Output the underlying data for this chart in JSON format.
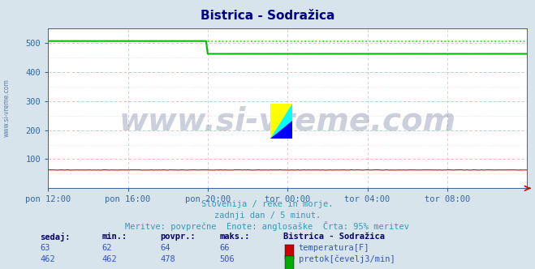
{
  "title_display": "Bistrica - Sodražica",
  "bg_color": "#d8e4ec",
  "plot_bg_color": "#ffffff",
  "grid_h_color": "#ffaaaa",
  "grid_v_color": "#cccccc",
  "tick_color": "#336699",
  "ylim": [
    0,
    550
  ],
  "yticks": [
    100,
    200,
    300,
    400,
    500
  ],
  "x_labels": [
    "pon 12:00",
    "pon 16:00",
    "pon 20:00",
    "tor 00:00",
    "tor 04:00",
    "tor 08:00"
  ],
  "x_ticks_pos": [
    0,
    48,
    96,
    144,
    192,
    240
  ],
  "total_points": 289,
  "drop_idx": 96,
  "temp_base": 63.0,
  "temp_color": "#cc0000",
  "flow_high": 506,
  "flow_low": 462,
  "flow_color": "#00bb00",
  "flow_dot_color": "#00ee00",
  "watermark": "www.si-vreme.com",
  "watermark_color": "#334477",
  "watermark_alpha": 0.25,
  "watermark_fontsize": 28,
  "subtitle_color": "#3399bb",
  "subtitle1": "Slovenija / reke in morje.",
  "subtitle2": "zadnji dan / 5 minut.",
  "subtitle3": "Meritve: povprečne  Enote: anglosaške  Črta: 95% meritev",
  "legend_title": "Bistrica - Sodražica",
  "legend_header_color": "#000066",
  "legend_val_color": "#3355bb",
  "temp_value": 63,
  "temp_min": 62,
  "temp_avg": 64,
  "temp_max": 66,
  "flow_value": 462,
  "flow_min": 462,
  "flow_avg": 478,
  "flow_max": 506,
  "sidebar_text": "www.si-vreme.com",
  "sidebar_color": "#3366aa",
  "title_color": "#000088",
  "arrow_color": "#cc0000"
}
